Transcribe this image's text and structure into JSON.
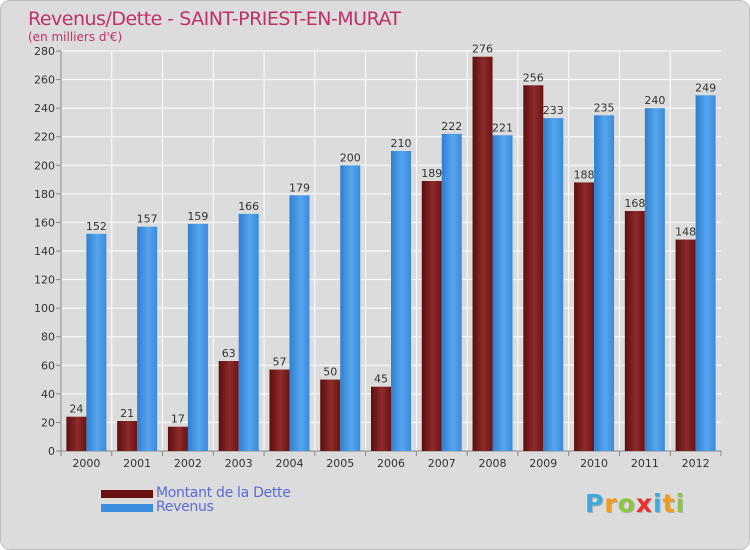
{
  "chart_data": {
    "type": "bar",
    "title": "Revenus/Dette - SAINT-PRIEST-EN-MURAT",
    "subtitle": "(en milliers d'€)",
    "categories": [
      "2000",
      "2001",
      "2002",
      "2003",
      "2004",
      "2005",
      "2006",
      "2007",
      "2008",
      "2009",
      "2010",
      "2011",
      "2012"
    ],
    "series": [
      {
        "name": "Montant de la Dette",
        "color": "#7a1a1a",
        "values": [
          24,
          21,
          17,
          63,
          57,
          50,
          45,
          189,
          276,
          256,
          188,
          168,
          148
        ]
      },
      {
        "name": "Revenus",
        "color": "#3d8ee0",
        "values": [
          152,
          157,
          159,
          166,
          179,
          200,
          210,
          222,
          221,
          233,
          235,
          240,
          249
        ]
      }
    ],
    "ylim": [
      0,
      280
    ],
    "yticks": [
      0,
      20,
      40,
      60,
      80,
      100,
      120,
      140,
      160,
      180,
      200,
      220,
      240,
      260,
      280
    ],
    "grid": true,
    "legend_position": "bottom-left"
  },
  "logo": {
    "letters": [
      "P",
      "r",
      "o",
      "x",
      "i",
      "t",
      "i"
    ],
    "colors": [
      "#3fa9e0",
      "#f29a1a",
      "#8cc63f",
      "#e8312f",
      "#3fa9e0",
      "#f29a1a",
      "#8cc63f"
    ]
  }
}
